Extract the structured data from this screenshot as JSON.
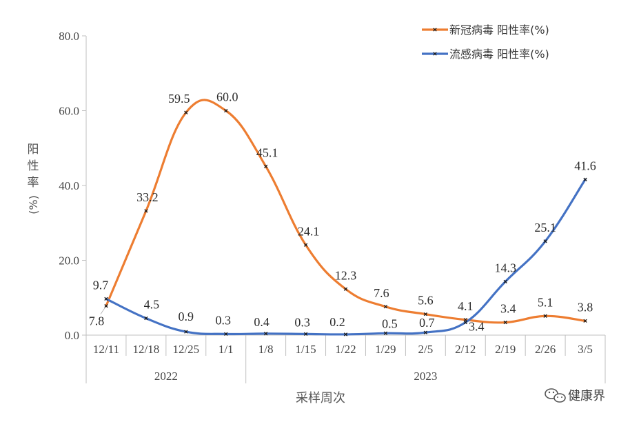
{
  "chart_data": {
    "type": "line",
    "categories": [
      "12/11",
      "12/18",
      "12/25",
      "1/1",
      "1/8",
      "1/15",
      "1/22",
      "1/29",
      "2/5",
      "2/12",
      "2/19",
      "2/26",
      "3/5"
    ],
    "year_groups": [
      {
        "label": "2022",
        "start": 0,
        "end": 3
      },
      {
        "label": "2023",
        "start": 4,
        "end": 12
      }
    ],
    "series": [
      {
        "name": "新冠病毒 阳性率(%)",
        "color": "#ED7D31",
        "values": [
          7.8,
          33.2,
          59.5,
          60.0,
          45.1,
          24.1,
          12.3,
          7.6,
          5.6,
          4.1,
          3.4,
          5.1,
          3.8
        ],
        "labels": [
          "7.8",
          "33.2",
          "59.5",
          "60.0",
          "45.1",
          "24.1",
          "12.3",
          "7.6",
          "5.6",
          "4.1",
          "3.4",
          "5.1",
          "3.8"
        ]
      },
      {
        "name": "流感病毒 阳性率(%)",
        "color": "#4472C4",
        "values": [
          9.7,
          4.5,
          0.9,
          0.3,
          0.4,
          0.3,
          0.2,
          0.5,
          0.7,
          3.4,
          14.3,
          25.1,
          41.6
        ],
        "labels": [
          "9.7",
          "4.5",
          "0.9",
          "0.3",
          "0.4",
          "0.3",
          "0.2",
          "0.5",
          "0.7",
          "3.4",
          "14.3",
          "25.1",
          "41.6"
        ]
      }
    ],
    "y_ticks": [
      "0.0",
      "20.0",
      "40.0",
      "60.0",
      "80.0"
    ],
    "ylim": [
      0,
      80
    ],
    "xlabel": "采样周次",
    "ylabel_chars": [
      "阳",
      "性",
      "率"
    ],
    "ylabel_unit": "(%)",
    "legend_position": "top-right"
  },
  "watermark": {
    "text": "健康界"
  }
}
